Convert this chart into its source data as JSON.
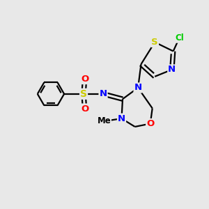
{
  "bg_color": "#e8e8e8",
  "bond_color": "#000000",
  "atom_colors": {
    "N": "#0000ff",
    "O": "#ff0000",
    "S": "#cccc00",
    "Cl": "#00cc00",
    "C": "#000000"
  },
  "figsize": [
    3.0,
    3.0
  ],
  "dpi": 100,
  "lw": 1.6,
  "fontsize": 9.5
}
